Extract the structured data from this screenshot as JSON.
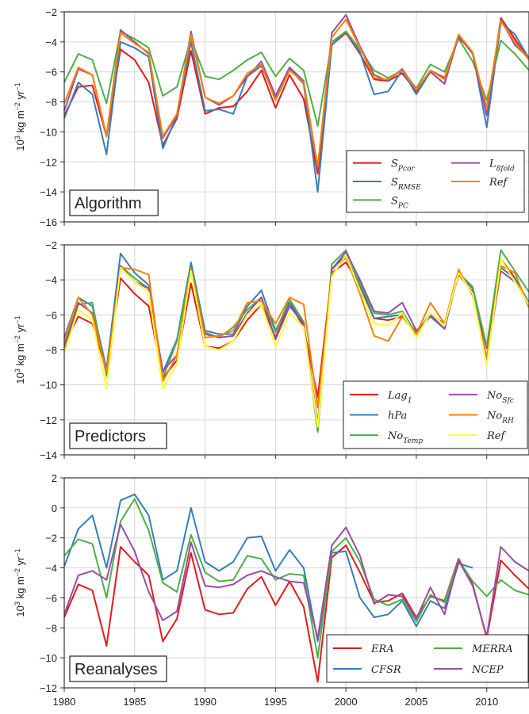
{
  "chart_data": [
    {
      "type": "line",
      "panel_label": "Algorithm",
      "ylabel": "10^3 kg m^-2 yr^-1",
      "ylim": [
        -16,
        -2
      ],
      "yticks": [
        -16,
        -14,
        -12,
        -10,
        -8,
        -6,
        -4,
        -2
      ],
      "xlim": [
        1980,
        2013
      ],
      "grid": true,
      "legend_placement": "lower-right",
      "legend_columns": 2,
      "x": [
        1980,
        1981,
        1982,
        1983,
        1984,
        1985,
        1986,
        1987,
        1988,
        1989,
        1990,
        1991,
        1992,
        1993,
        1994,
        1995,
        1996,
        1997,
        1998,
        1999,
        2000,
        2001,
        2002,
        2003,
        2004,
        2005,
        2006,
        2007,
        2008,
        2009,
        2010,
        2011,
        2012,
        2013
      ],
      "series": [
        {
          "name": "S_Pcor",
          "color": "#e41a1c",
          "values": [
            -8.9,
            -7.0,
            -6.9,
            -10.3,
            -4.5,
            -5.2,
            -6.7,
            -10.9,
            -9.1,
            -4.6,
            -8.8,
            -8.4,
            -8.3,
            -7.3,
            -5.9,
            -8.4,
            -6.2,
            -7.8,
            -12.8,
            -4.2,
            -3.4,
            -4.8,
            -6.5,
            -6.6,
            -6.1,
            -7.3,
            -5.9,
            -6.4,
            -3.7,
            -4.7,
            -8.9,
            -2.4,
            -3.8,
            -5.2
          ]
        },
        {
          "name": "S_RMSE",
          "color": "#377eb8",
          "values": [
            -9.1,
            -6.7,
            -7.5,
            -11.5,
            -4.0,
            -4.4,
            -5.0,
            -11.1,
            -8.9,
            -4.0,
            -8.6,
            -8.5,
            -8.8,
            -6.3,
            -5.6,
            -7.8,
            -5.8,
            -6.8,
            -14.0,
            -4.2,
            -3.3,
            -4.7,
            -7.5,
            -7.3,
            -5.9,
            -7.5,
            -6.0,
            -6.8,
            -3.6,
            -4.7,
            -9.7,
            -2.7,
            -3.5,
            -5.1
          ]
        },
        {
          "name": "S_PC",
          "color": "#4daf4a",
          "values": [
            -6.7,
            -4.8,
            -5.2,
            -8.1,
            -3.3,
            -3.8,
            -4.4,
            -7.6,
            -7.0,
            -3.8,
            -6.3,
            -6.5,
            -5.9,
            -5.2,
            -4.7,
            -6.3,
            -5.1,
            -5.9,
            -9.6,
            -4.0,
            -3.3,
            -4.5,
            -5.9,
            -6.4,
            -5.9,
            -7.1,
            -5.5,
            -6.0,
            -3.8,
            -5.3,
            -7.9,
            -3.9,
            -4.8,
            -5.9
          ]
        },
        {
          "name": "L_8fold",
          "color": "#984ea3",
          "values": [
            -8.6,
            -5.8,
            -6.2,
            -10.3,
            -3.2,
            -4.0,
            -4.8,
            -10.4,
            -8.9,
            -3.3,
            -7.7,
            -8.2,
            -7.6,
            -6.3,
            -5.3,
            -7.6,
            -5.7,
            -6.6,
            -12.5,
            -3.4,
            -2.2,
            -4.3,
            -6.2,
            -6.6,
            -5.8,
            -7.2,
            -6.0,
            -6.8,
            -3.6,
            -4.8,
            -8.9,
            -2.5,
            -4.2,
            -5.1
          ]
        },
        {
          "name": "Ref",
          "color": "#ff7f00",
          "values": [
            -8.1,
            -5.7,
            -6.2,
            -10.3,
            -3.4,
            -4.1,
            -4.7,
            -10.3,
            -8.8,
            -3.5,
            -7.7,
            -8.1,
            -7.6,
            -6.1,
            -5.5,
            -7.9,
            -5.9,
            -6.7,
            -12.3,
            -3.7,
            -2.5,
            -4.4,
            -6.4,
            -6.5,
            -5.9,
            -7.2,
            -5.9,
            -6.5,
            -3.5,
            -4.7,
            -8.4,
            -2.6,
            -4.0,
            -5.2
          ]
        }
      ]
    },
    {
      "type": "line",
      "panel_label": "Predictors",
      "ylabel": "10^3 kg m^-2 yr^-1",
      "ylim": [
        -14,
        -2
      ],
      "yticks": [
        -14,
        -12,
        -10,
        -8,
        -6,
        -4,
        -2
      ],
      "xlim": [
        1980,
        2013
      ],
      "grid": true,
      "legend_placement": "lower-right",
      "legend_columns": 2,
      "x": [
        1980,
        1981,
        1982,
        1983,
        1984,
        1985,
        1986,
        1987,
        1988,
        1989,
        1990,
        1991,
        1992,
        1993,
        1994,
        1995,
        1996,
        1997,
        1998,
        1999,
        2000,
        2001,
        2002,
        2003,
        2004,
        2005,
        2006,
        2007,
        2008,
        2009,
        2010,
        2011,
        2012,
        2013
      ],
      "series": [
        {
          "name": "Lag_1",
          "color": "#e41a1c",
          "values": [
            -7.7,
            -6.1,
            -6.5,
            -9.2,
            -3.9,
            -4.8,
            -5.5,
            -9.6,
            -8.6,
            -4.2,
            -7.8,
            -7.9,
            -7.5,
            -6.3,
            -5.4,
            -7.3,
            -5.3,
            -6.7,
            -10.7,
            -3.6,
            -3.0,
            -4.3,
            -6.2,
            -6.3,
            -6.1,
            -7.0,
            -6.0,
            -6.5,
            -3.7,
            -4.7,
            -7.9,
            -2.8,
            -3.9,
            -5.4
          ]
        },
        {
          "name": "hPa",
          "color": "#377eb8",
          "values": [
            -7.3,
            -5.0,
            -5.5,
            -9.1,
            -2.5,
            -3.6,
            -4.3,
            -9.3,
            -7.4,
            -3.0,
            -6.9,
            -7.1,
            -7.1,
            -5.5,
            -4.6,
            -6.9,
            -5.3,
            -6.4,
            -12.6,
            -3.4,
            -2.6,
            -4.4,
            -6.2,
            -6.1,
            -6.0,
            -7.0,
            -6.0,
            -6.8,
            -3.6,
            -4.5,
            -8.6,
            -3.3,
            -3.9,
            -5.3
          ]
        },
        {
          "name": "No_Temp",
          "color": "#4daf4a",
          "values": [
            -7.9,
            -5.4,
            -5.3,
            -9.5,
            -3.2,
            -3.9,
            -4.5,
            -9.6,
            -7.5,
            -3.3,
            -7.0,
            -7.3,
            -6.7,
            -5.7,
            -5.0,
            -7.0,
            -5.1,
            -6.4,
            -12.7,
            -3.1,
            -2.3,
            -4.2,
            -5.9,
            -6.0,
            -5.8,
            -7.1,
            -5.9,
            -6.6,
            -3.6,
            -4.4,
            -7.8,
            -2.3,
            -3.5,
            -4.7
          ]
        },
        {
          "name": "No_Sfc",
          "color": "#984ea3",
          "values": [
            -7.8,
            -5.3,
            -5.9,
            -9.3,
            -3.2,
            -4.1,
            -4.5,
            -9.2,
            -8.3,
            -3.5,
            -7.1,
            -7.3,
            -7.2,
            -5.9,
            -5.0,
            -7.4,
            -5.5,
            -6.5,
            -12.2,
            -3.4,
            -2.4,
            -4.0,
            -5.8,
            -5.9,
            -5.3,
            -6.9,
            -6.1,
            -6.8,
            -3.5,
            -4.8,
            -8.5,
            -3.5,
            -4.1,
            -5.4
          ]
        },
        {
          "name": "No_RH",
          "color": "#ff7f00",
          "values": [
            -7.5,
            -5.0,
            -6.0,
            -9.3,
            -3.3,
            -3.4,
            -3.7,
            -9.8,
            -8.3,
            -3.4,
            -7.3,
            -7.2,
            -6.9,
            -5.3,
            -5.2,
            -6.5,
            -5.0,
            -5.4,
            -11.3,
            -3.7,
            -2.7,
            -4.8,
            -7.2,
            -7.5,
            -6.1,
            -7.1,
            -5.3,
            -6.5,
            -3.4,
            -4.9,
            -8.6,
            -3.2,
            -3.6,
            -5.6
          ]
        },
        {
          "name": "Ref",
          "color": "#ffff33",
          "values": [
            -8.2,
            -5.7,
            -6.3,
            -10.2,
            -3.3,
            -4.1,
            -4.7,
            -10.2,
            -8.8,
            -3.5,
            -7.8,
            -8.0,
            -7.5,
            -6.0,
            -5.4,
            -7.8,
            -5.9,
            -6.7,
            -12.4,
            -3.8,
            -2.6,
            -4.6,
            -6.5,
            -6.6,
            -5.9,
            -7.3,
            -5.9,
            -6.6,
            -3.6,
            -4.8,
            -8.9,
            -2.8,
            -4.1,
            -5.4
          ]
        }
      ]
    },
    {
      "type": "line",
      "panel_label": "Reanalyses",
      "ylabel": "10^3 kg m^-2 yr^-1",
      "ylim": [
        -12,
        2
      ],
      "yticks": [
        -12,
        -10,
        -8,
        -6,
        -4,
        -2,
        0,
        2
      ],
      "xlim": [
        1980,
        2013
      ],
      "xticks": [
        1980,
        1985,
        1990,
        1995,
        2000,
        2005,
        2010
      ],
      "grid": true,
      "legend_placement": "lower-right",
      "legend_columns": 2,
      "x": [
        1980,
        1981,
        1982,
        1983,
        1984,
        1985,
        1986,
        1987,
        1988,
        1989,
        1990,
        1991,
        1992,
        1993,
        1994,
        1995,
        1996,
        1997,
        1998,
        1999,
        2000,
        2001,
        2002,
        2003,
        2004,
        2005,
        2006,
        2007,
        2008,
        2009,
        2010,
        2011,
        2012,
        2013
      ],
      "series": [
        {
          "name": "ERA",
          "color": "#e41a1c",
          "values": [
            -7.3,
            -5.1,
            -5.5,
            -9.2,
            -2.6,
            -3.6,
            -4.5,
            -8.9,
            -7.4,
            -3.0,
            -6.8,
            -7.1,
            -7.0,
            -5.4,
            -4.6,
            -6.5,
            -4.9,
            -6.6,
            -11.6,
            -3.3,
            -2.5,
            -4.3,
            -6.3,
            -6.2,
            -5.7,
            -7.3,
            -5.9,
            -6.2,
            -3.4,
            -5.1,
            -8.7,
            -3.5,
            -4.5,
            -5.4
          ]
        },
        {
          "name": "CFSR",
          "color": "#377eb8",
          "values": [
            -3.9,
            -1.4,
            -0.5,
            -4.0,
            0.5,
            0.9,
            -0.5,
            -4.8,
            -4.2,
            0.0,
            -3.6,
            -4.2,
            -3.6,
            -2.0,
            -1.9,
            -4.2,
            -2.8,
            -4.0,
            -8.9,
            -3.0,
            -2.9,
            -6.0,
            -7.3,
            -7.1,
            -6.2,
            -7.9,
            -6.2,
            -6.7,
            -3.7,
            -4.0,
            null,
            null,
            null,
            null
          ]
        },
        {
          "name": "MERRA",
          "color": "#4daf4a",
          "values": [
            -3.2,
            -2.1,
            -2.4,
            -6.0,
            -0.9,
            0.6,
            -1.5,
            -5.0,
            -5.6,
            -1.8,
            -4.3,
            -4.9,
            -4.8,
            -3.2,
            -3.4,
            -4.8,
            -4.4,
            -4.5,
            -10.0,
            -2.9,
            -2.0,
            -3.6,
            -6.1,
            -6.5,
            -6.1,
            -7.6,
            -5.8,
            -6.3,
            -3.5,
            -4.9,
            -5.9,
            -4.8,
            -5.5,
            -5.8
          ]
        },
        {
          "name": "NCEP",
          "color": "#984ea3",
          "values": [
            -7.1,
            -4.5,
            -4.2,
            -4.8,
            -1.1,
            -2.9,
            -5.6,
            -7.5,
            -6.9,
            -2.3,
            -5.2,
            -5.3,
            -5.1,
            -4.5,
            -4.2,
            -4.6,
            -4.9,
            -5.0,
            -8.7,
            -2.5,
            -1.3,
            -3.2,
            -6.4,
            -5.8,
            -5.9,
            -7.4,
            -5.3,
            -7.1,
            -3.5,
            -5.2,
            -8.6,
            -2.6,
            -3.6,
            -4.2
          ]
        }
      ]
    }
  ]
}
